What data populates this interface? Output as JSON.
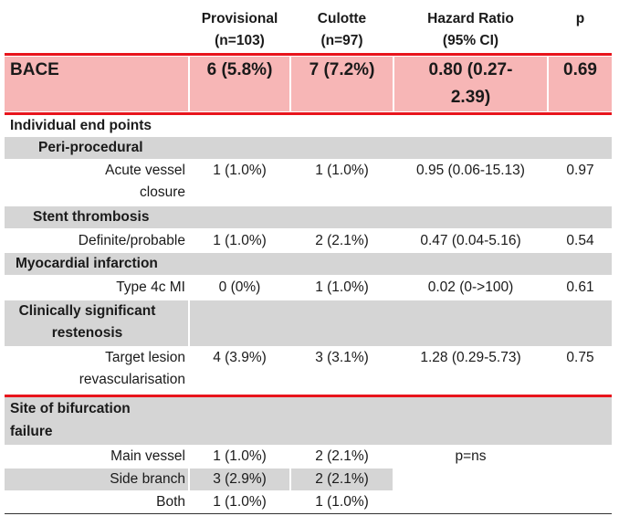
{
  "header": {
    "provisional_line1": "Provisional",
    "provisional_line2": "(n=103)",
    "culotte_line1": "Culotte",
    "culotte_line2": "(n=97)",
    "hr_line1": "Hazard Ratio",
    "hr_line2": "(95% CI)",
    "p": "p"
  },
  "bace": {
    "label": "BACE",
    "provisional": "6 (5.8%)",
    "culotte": "7 (7.2%)",
    "hr_line1": "0.80 (0.27-",
    "hr_line2": "2.39)",
    "p": "0.69"
  },
  "individual_end_points": "Individual end points",
  "peri_procedural": {
    "heading": "Peri-procedural",
    "label_line1": "Acute vessel",
    "label_line2": "closure",
    "provisional": "1 (1.0%)",
    "culotte": "1 (1.0%)",
    "hr": "0.95 (0.06-15.13)",
    "p": "0.97"
  },
  "stent_thrombosis": {
    "heading": "Stent thrombosis",
    "label": "Definite/probable",
    "provisional": "1 (1.0%)",
    "culotte": "2 (2.1%)",
    "hr": "0.47 (0.04-5.16)",
    "p": "0.54"
  },
  "myocardial_infarction": {
    "heading": "Myocardial infarction",
    "label": "Type 4c MI",
    "provisional": "0 (0%)",
    "culotte": "1 (1.0%)",
    "hr": "0.02 (0->100)",
    "p": "0.61"
  },
  "restenosis": {
    "heading_line1": "Clinically significant",
    "heading_line2": "restenosis",
    "label_line1": "Target lesion",
    "label_line2": "revascularisation",
    "provisional": "4 (3.9%)",
    "culotte": "3 (3.1%)",
    "hr": "1.28 (0.29-5.73)",
    "p": "0.75"
  },
  "bifurcation_failure": {
    "heading_line1": "Site of bifurcation",
    "heading_line2": "failure",
    "main_vessel": {
      "label": "Main vessel",
      "provisional": "1 (1.0%)",
      "culotte": "2 (2.1%)"
    },
    "side_branch": {
      "label": "Side branch",
      "provisional": "3 (2.9%)",
      "culotte": "2 (2.1%)"
    },
    "both": {
      "label": "Both",
      "provisional": "1 (1.0%)",
      "culotte": "1 (1.0%)"
    },
    "p_note": "p=ns"
  },
  "colors": {
    "accent_red": "#e8141c",
    "highlight_pink": "#f7b6b6",
    "row_grey": "#d5d5d5"
  }
}
